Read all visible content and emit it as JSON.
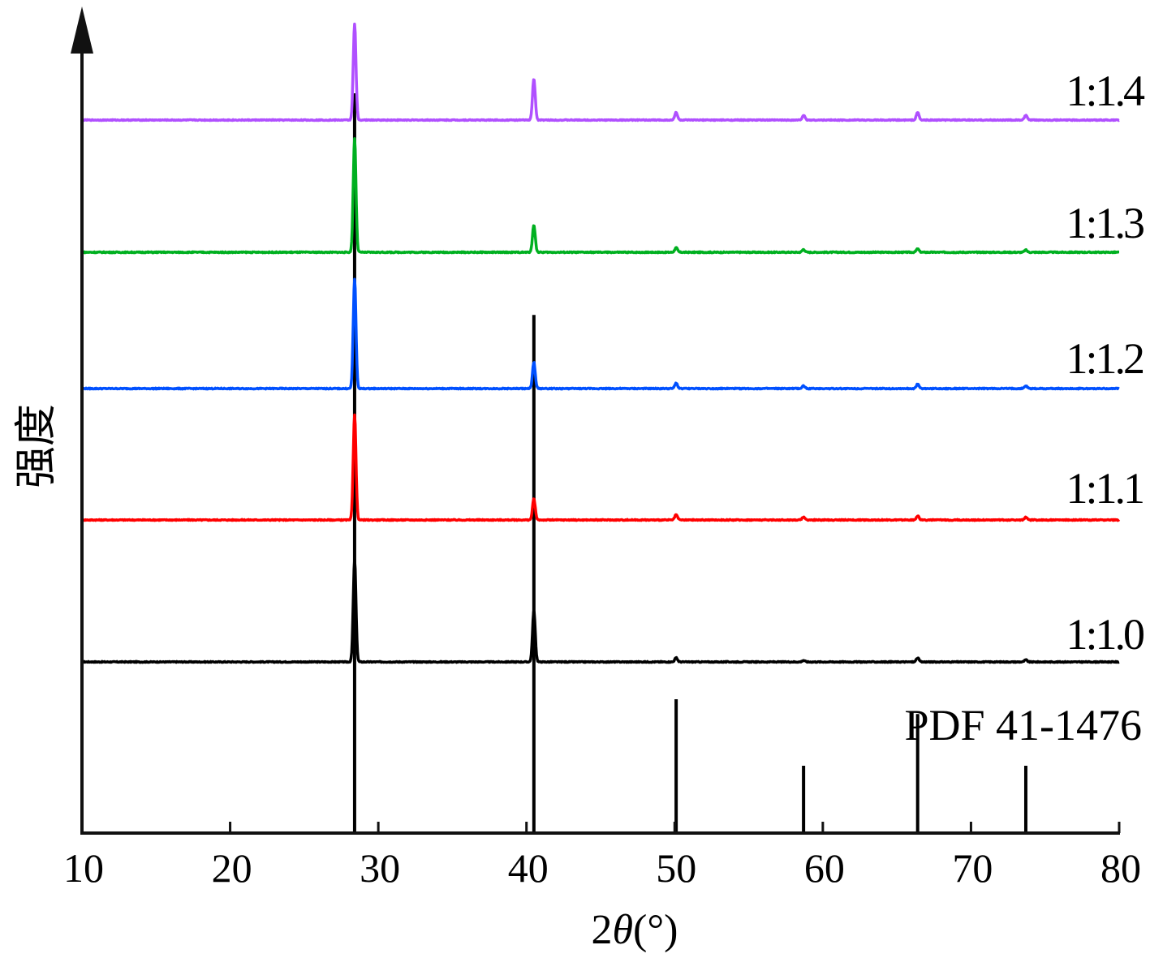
{
  "chart_data": {
    "type": "line",
    "xlabel_prefix": "2",
    "xlabel_theta": "θ",
    "xlabel_suffix": "(°)",
    "ylabel": "强度",
    "xlim": [
      10,
      80
    ],
    "xticks": [
      10,
      20,
      30,
      40,
      50,
      60,
      70,
      80
    ],
    "grid": false,
    "legend": "right-inline-labels",
    "reference": {
      "name": "PDF 41-1476",
      "peaks": [
        {
          "x": 28.4,
          "intensity": 100
        },
        {
          "x": 40.5,
          "intensity": 70
        },
        {
          "x": 50.1,
          "intensity": 18
        },
        {
          "x": 58.7,
          "intensity": 9
        },
        {
          "x": 66.4,
          "intensity": 16
        },
        {
          "x": 73.7,
          "intensity": 9
        }
      ]
    },
    "series": [
      {
        "name": "1:1.0",
        "color": "#000000",
        "peaks": [
          {
            "x": 28.4,
            "h": 100
          },
          {
            "x": 40.5,
            "h": 50
          },
          {
            "x": 50.1,
            "h": 4
          },
          {
            "x": 58.7,
            "h": 1.5
          },
          {
            "x": 66.4,
            "h": 4
          },
          {
            "x": 73.7,
            "h": 2
          }
        ]
      },
      {
        "name": "1:1.1",
        "color": "#ff0000",
        "peaks": [
          {
            "x": 28.4,
            "h": 100
          },
          {
            "x": 40.5,
            "h": 20
          },
          {
            "x": 50.1,
            "h": 5
          },
          {
            "x": 58.7,
            "h": 3
          },
          {
            "x": 66.4,
            "h": 4
          },
          {
            "x": 73.7,
            "h": 2.5
          }
        ]
      },
      {
        "name": "1:1.2",
        "color": "#0050ff",
        "peaks": [
          {
            "x": 28.4,
            "h": 100
          },
          {
            "x": 40.5,
            "h": 24
          },
          {
            "x": 50.1,
            "h": 5
          },
          {
            "x": 58.7,
            "h": 2.5
          },
          {
            "x": 66.4,
            "h": 4
          },
          {
            "x": 73.7,
            "h": 2.5
          }
        ]
      },
      {
        "name": "1:1.3",
        "color": "#00b020",
        "peaks": [
          {
            "x": 28.4,
            "h": 100
          },
          {
            "x": 40.5,
            "h": 24
          },
          {
            "x": 50.1,
            "h": 4
          },
          {
            "x": 58.7,
            "h": 2.5
          },
          {
            "x": 66.4,
            "h": 3
          },
          {
            "x": 73.7,
            "h": 2
          }
        ]
      },
      {
        "name": "1:1.4",
        "color": "#b050ff",
        "peaks": [
          {
            "x": 28.4,
            "h": 100
          },
          {
            "x": 40.5,
            "h": 43
          },
          {
            "x": 50.1,
            "h": 8
          },
          {
            "x": 58.7,
            "h": 5
          },
          {
            "x": 66.4,
            "h": 8
          },
          {
            "x": 73.7,
            "h": 5
          }
        ]
      }
    ]
  }
}
